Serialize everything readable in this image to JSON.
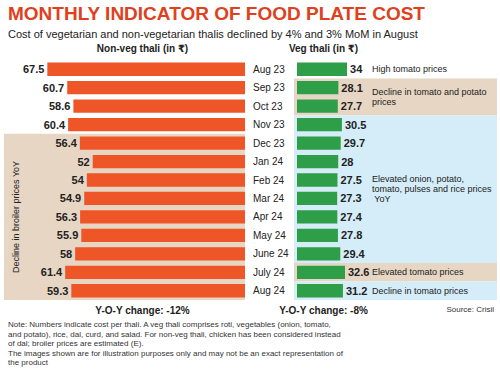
{
  "title": "MONTHLY INDICATOR OF FOOD PLATE COST",
  "subtitle": "Cost of vegetarian and non-vegetarian thalis declined by 4% and 3% MoM in August",
  "note": [
    "Note: Numbers indicate cost per thali. A veg thali comprises roti, vegetables (onion, tomato, and potato), rice, dal, curd, and salad. For non-veg thali, chicken has been considered instead of dal; broiler prices are estimated (E).",
    "The images shown are for illustration purposes only and may not be an exact representation of the product"
  ],
  "source": "Source: Crisil",
  "chart_data": [
    {
      "type": "bar",
      "title": "Non-veg thali (in ₹)",
      "orientation": "horizontal",
      "categories": [
        "Aug 23",
        "Sep 23",
        "Oct 23",
        "Nov 23",
        "Dec 23",
        "Jan 24",
        "Feb 24",
        "Mar 24",
        "Apr 24",
        "May 24",
        "June 24",
        "July 24",
        "Aug 24"
      ],
      "values": [
        67.5,
        60.7,
        58.6,
        60.4,
        56.4,
        52,
        54,
        54.9,
        56.3,
        55.9,
        58,
        61.4,
        59.3
      ],
      "color": "#ee5527",
      "xlim": [
        0,
        70
      ],
      "data_labels": true,
      "tick_labels": "y",
      "grid": false,
      "caption": "Y-O-Y change: -12%",
      "annotations": [
        {
          "text": "Decline in broiler prices YoY",
          "from": "Dec 23",
          "to": "Aug 24"
        }
      ]
    },
    {
      "type": "bar",
      "title": "Veg thali (in ₹)",
      "orientation": "horizontal",
      "categories": [
        "Aug 23",
        "Sep 23",
        "Oct 23",
        "Nov 23",
        "Dec 23",
        "Jan 24",
        "Feb 24",
        "Mar 24",
        "Apr 24",
        "May 24",
        "June 24",
        "July 24",
        "Aug 24"
      ],
      "values": [
        34,
        28.1,
        27.7,
        30.5,
        29.7,
        28,
        27.5,
        27.3,
        27.4,
        27.8,
        29.4,
        32.6,
        31.2
      ],
      "color": "#2f9e48",
      "xlim": [
        0,
        36
      ],
      "data_labels": true,
      "tick_labels": false,
      "grid": false,
      "caption": "Y-O-Y change: -8%",
      "annotations": [
        {
          "text": "High tomato prices",
          "from": "Aug 23",
          "to": "Aug 23"
        },
        {
          "text": "Decline in tomato and potato prices",
          "from": "Sep 23",
          "to": "Oct 23"
        },
        {
          "text": "Elevated onion, potato, tomato, pulses and rice prices YoY",
          "from": "Nov 23",
          "to": "June 24"
        },
        {
          "text": "Elevated tomato prices",
          "from": "July 24",
          "to": "July 24"
        },
        {
          "text": "Decline in tomato prices",
          "from": "Aug 24",
          "to": "Aug 24"
        }
      ]
    }
  ]
}
